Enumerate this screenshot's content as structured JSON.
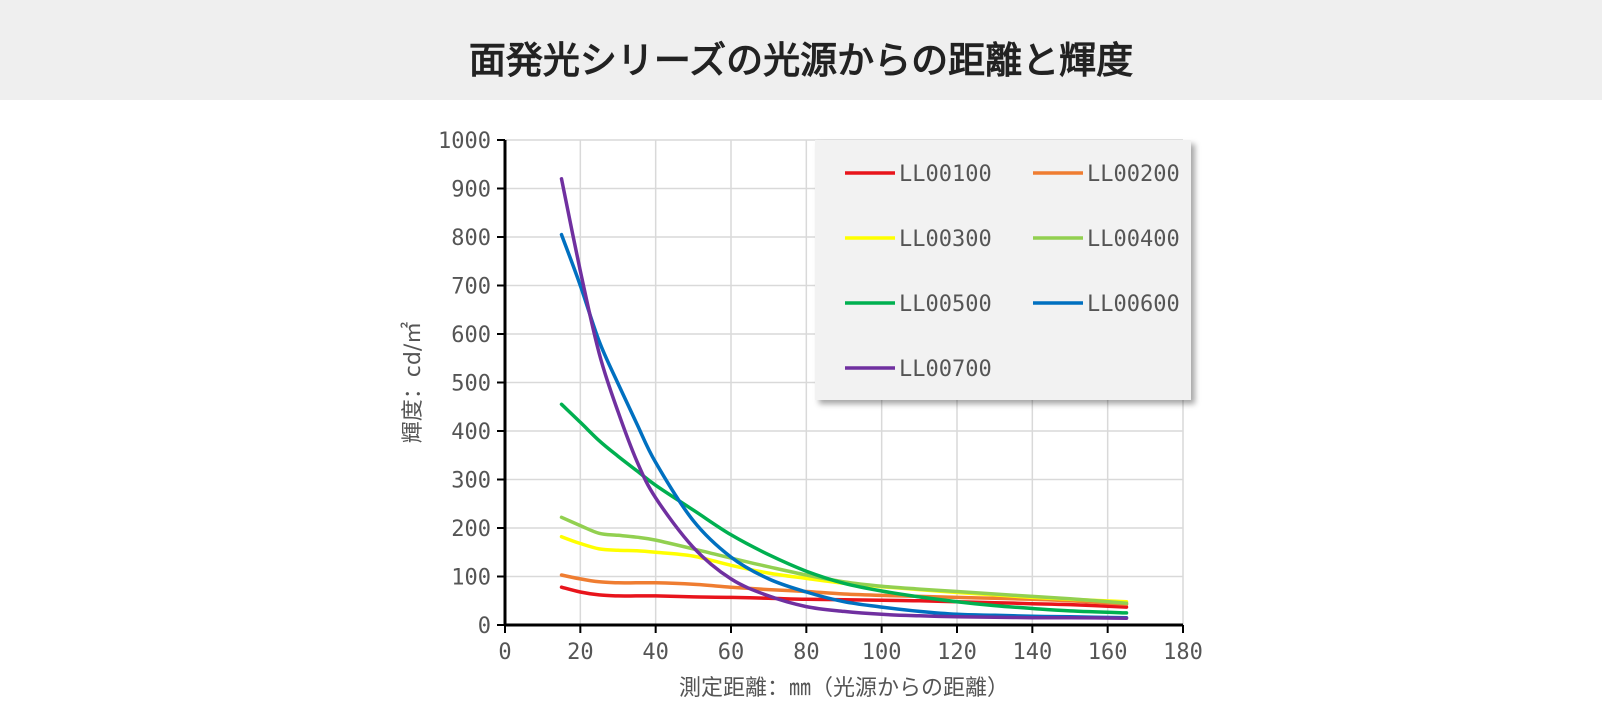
{
  "page": {
    "title": "面発光シリーズの光源からの距離と輝度"
  },
  "chart_data": {
    "type": "line",
    "title": "面発光シリーズの光源からの距離と輝度",
    "xlabel": "測定距離：㎜（光源からの距離）",
    "ylabel": "輝度：cd/㎡",
    "xlim": [
      0,
      180
    ],
    "ylim": [
      0,
      1000
    ],
    "x_ticks": [
      "0",
      "20",
      "40",
      "60",
      "80",
      "100",
      "120",
      "140",
      "160",
      "180"
    ],
    "y_ticks": [
      "0",
      "100",
      "200",
      "300",
      "400",
      "500",
      "600",
      "700",
      "800",
      "900",
      "1000"
    ],
    "grid": true,
    "legend_position": "top-right",
    "x": [
      15,
      20,
      25,
      30,
      35,
      40,
      50,
      60,
      70,
      80,
      90,
      100,
      110,
      120,
      130,
      140,
      150,
      165
    ],
    "series": [
      {
        "name": "LL00100",
        "color": "#e8141b",
        "values": [
          78,
          68,
          62,
          60,
          60,
          60,
          58,
          57,
          55,
          53,
          52,
          51,
          50,
          48,
          46,
          44,
          42,
          37
        ]
      },
      {
        "name": "LL00200",
        "color": "#ef7d31",
        "values": [
          103,
          95,
          89,
          87,
          87,
          87,
          84,
          78,
          73,
          69,
          64,
          61,
          59,
          57,
          55,
          53,
          50,
          43
        ]
      },
      {
        "name": "LL00300",
        "color": "#ffff00",
        "values": [
          182,
          168,
          157,
          154,
          153,
          150,
          142,
          123,
          107,
          96,
          86,
          79,
          73,
          67,
          62,
          57,
          53,
          48
        ]
      },
      {
        "name": "LL00400",
        "color": "#92d050",
        "values": [
          222,
          205,
          189,
          185,
          181,
          175,
          157,
          138,
          120,
          103,
          89,
          80,
          74,
          69,
          64,
          59,
          54,
          45
        ]
      },
      {
        "name": "LL00500",
        "color": "#00b050",
        "values": [
          455,
          418,
          380,
          348,
          318,
          288,
          237,
          186,
          145,
          111,
          86,
          70,
          58,
          48,
          40,
          34,
          29,
          25
        ]
      },
      {
        "name": "LL00600",
        "color": "#0070c0",
        "values": [
          805,
          700,
          585,
          498,
          415,
          335,
          215,
          140,
          95,
          68,
          48,
          37,
          28,
          22,
          20,
          18,
          17,
          15
        ]
      },
      {
        "name": "LL00700",
        "color": "#7030a0",
        "values": [
          920,
          730,
          560,
          440,
          338,
          262,
          160,
          95,
          60,
          38,
          28,
          22,
          19,
          17,
          16,
          15,
          15,
          14
        ]
      }
    ]
  }
}
